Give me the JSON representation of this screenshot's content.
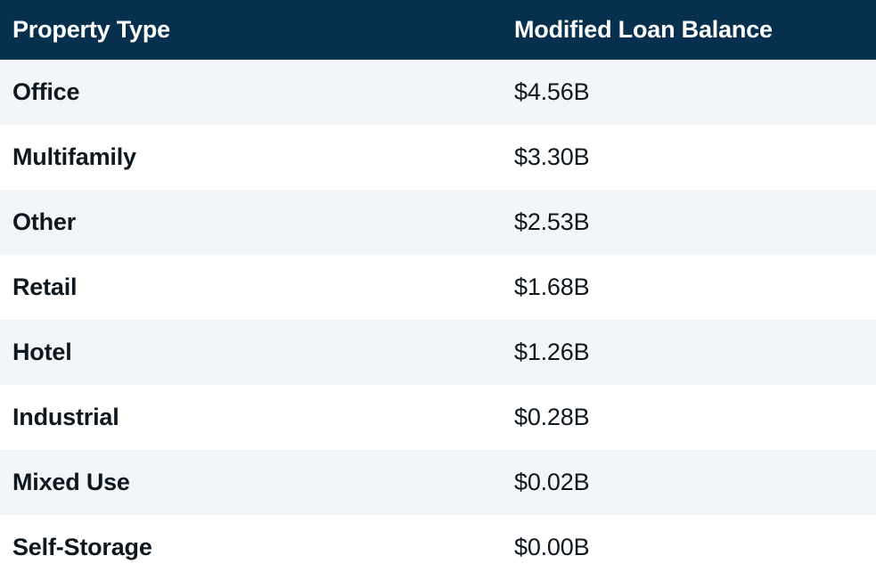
{
  "table": {
    "columns": [
      {
        "key": "type",
        "label": "Property Type"
      },
      {
        "key": "balance",
        "label": "Modified Loan Balance"
      }
    ],
    "rows": [
      {
        "type": "Office",
        "balance": "$4.56B"
      },
      {
        "type": "Multifamily",
        "balance": "$3.30B"
      },
      {
        "type": "Other",
        "balance": "$2.53B"
      },
      {
        "type": "Retail",
        "balance": "$1.68B"
      },
      {
        "type": "Hotel",
        "balance": "$1.26B"
      },
      {
        "type": "Industrial",
        "balance": "$0.28B"
      },
      {
        "type": "Mixed Use",
        "balance": "$0.02B"
      },
      {
        "type": "Self-Storage",
        "balance": "$0.00B"
      }
    ]
  },
  "colors": {
    "header_bg": "#06304d",
    "header_text": "#ffffff",
    "row_alt_bg": "#f3f6f9",
    "row_bg": "#ffffff",
    "body_text": "#10181f"
  },
  "chart_data": {
    "type": "table",
    "columns": [
      "Property Type",
      "Modified Loan Balance"
    ],
    "rows": [
      [
        "Office",
        "$4.56B"
      ],
      [
        "Multifamily",
        "$3.30B"
      ],
      [
        "Other",
        "$2.53B"
      ],
      [
        "Retail",
        "$1.68B"
      ],
      [
        "Hotel",
        "$1.26B"
      ],
      [
        "Industrial",
        "$0.28B"
      ],
      [
        "Mixed Use",
        "$0.02B"
      ],
      [
        "Self-Storage",
        "$0.00B"
      ]
    ],
    "values_billions_usd": [
      4.56,
      3.3,
      2.53,
      1.68,
      1.26,
      0.28,
      0.02,
      0.0
    ]
  }
}
